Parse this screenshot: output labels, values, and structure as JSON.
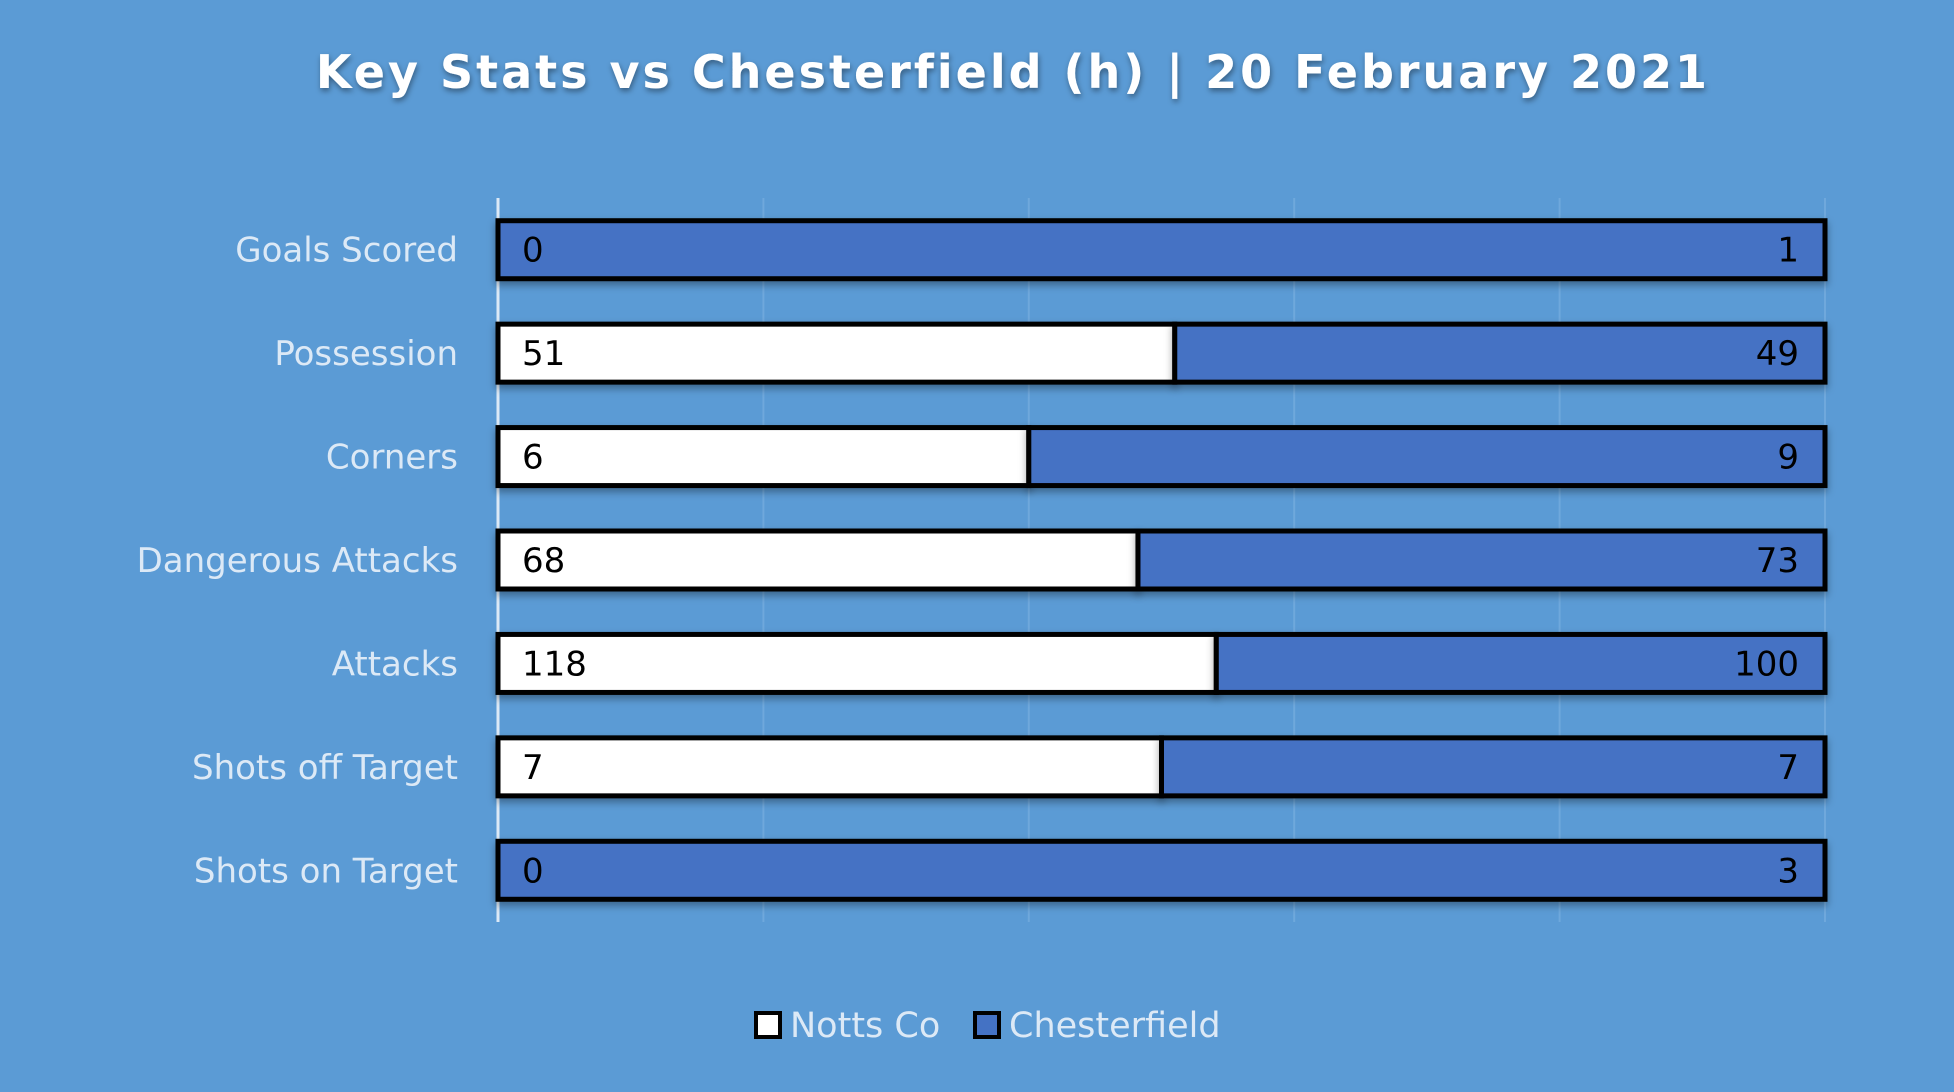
{
  "chart_data": {
    "type": "bar",
    "orientation": "horizontal",
    "stacking": "percent",
    "title": "Key Stats vs Chesterfield (h) | 20 February 2021",
    "categories": [
      "Goals Scored",
      "Possession",
      "Corners",
      "Dangerous Attacks",
      "Attacks",
      "Shots off Target",
      "Shots on Target"
    ],
    "series": [
      {
        "name": "Notts Co",
        "values": [
          0,
          51,
          6,
          68,
          118,
          7,
          0
        ],
        "color": "#ffffff"
      },
      {
        "name": "Chesterfield",
        "values": [
          1,
          49,
          9,
          73,
          100,
          7,
          3
        ],
        "color": "#4472c4"
      }
    ],
    "xlim": [
      0,
      100
    ],
    "grid": true,
    "legend_position": "bottom"
  },
  "colors": {
    "background": "#5b9bd5",
    "bar_border": "#000000",
    "text_light": "#dce9f6",
    "gridline": "#6fa8dc"
  }
}
